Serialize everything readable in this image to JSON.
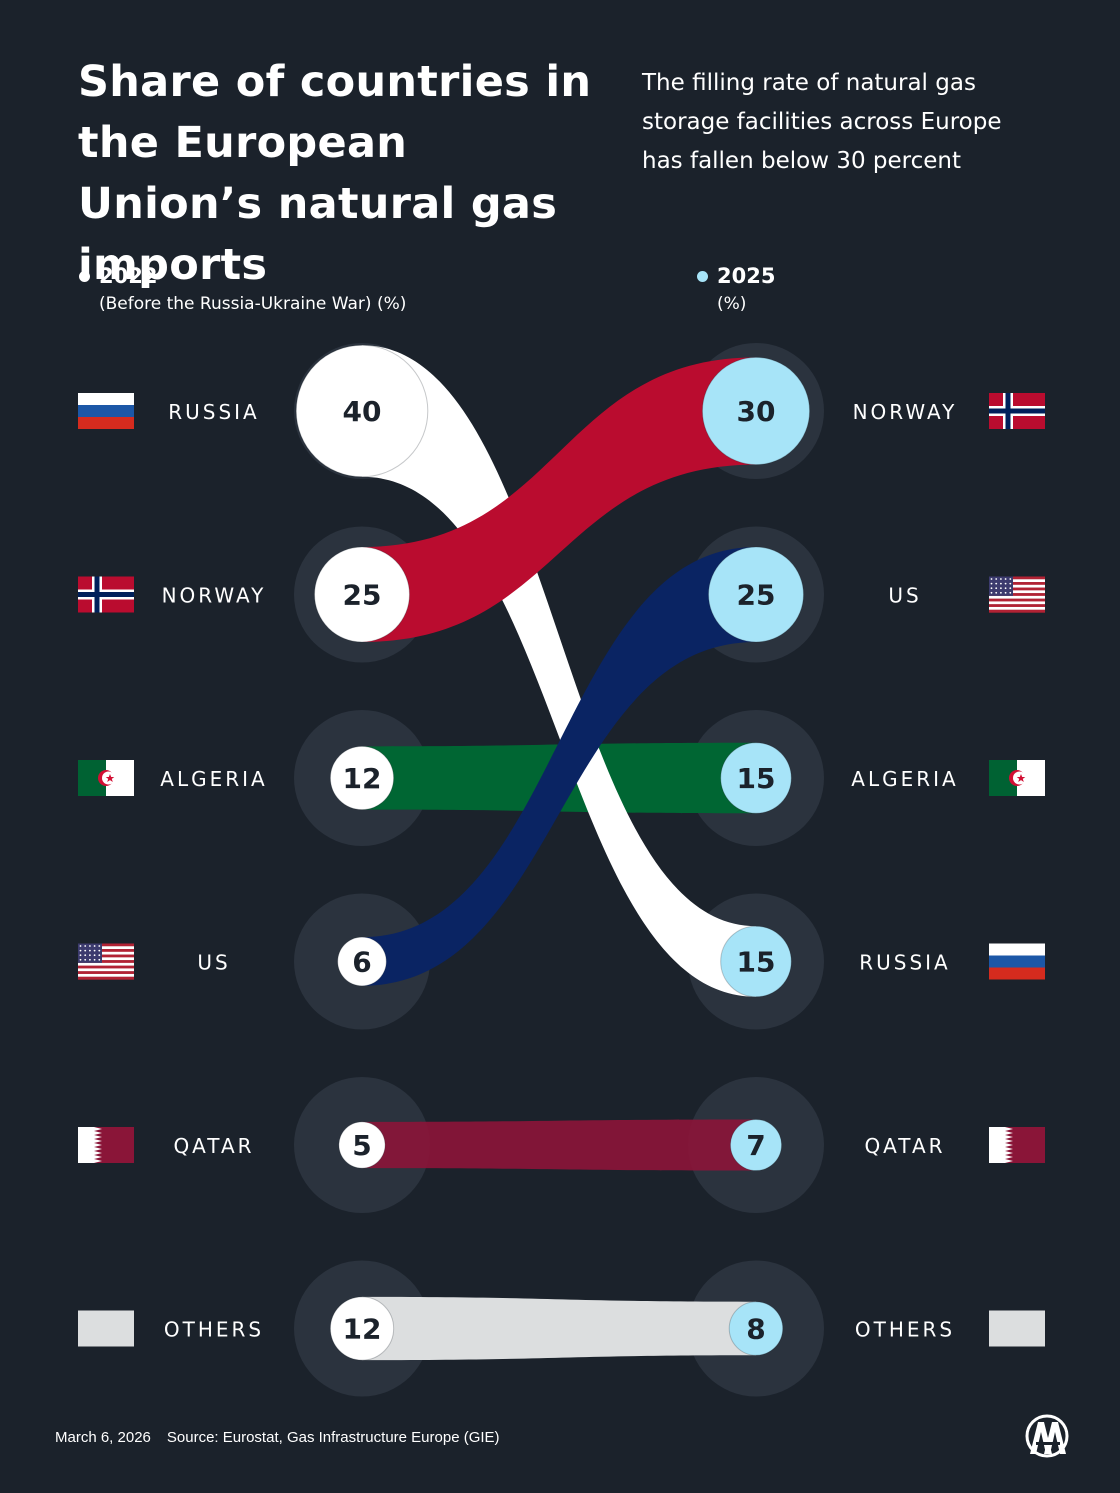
{
  "title": "Share of countries in the European Union’s natural gas imports",
  "subtitle": "The filling rate of natural gas storage facilities across Europe has fallen below 30 percent",
  "legend": {
    "left": {
      "year": "2022",
      "note": "(Before the Russia-Ukraine War) (%)",
      "color": "#ffffff"
    },
    "right": {
      "year": "2025",
      "note": "(%)",
      "color": "#a7e4f8"
    }
  },
  "footer": {
    "date": "March 6, 2026",
    "source": "Source: Eurostat, Gas Infrastructure Europe (GIE)"
  },
  "logo": "aa-logo-icon",
  "chart_data": {
    "type": "slope",
    "x": [
      "2022",
      "2025"
    ],
    "units": "%",
    "left": [
      {
        "country": "RUSSIA",
        "value": 40
      },
      {
        "country": "NORWAY",
        "value": 25
      },
      {
        "country": "ALGERIA",
        "value": 12
      },
      {
        "country": "US",
        "value": 6
      },
      {
        "country": "QATAR",
        "value": 5
      },
      {
        "country": "OTHERS",
        "value": 12
      }
    ],
    "right": [
      {
        "country": "NORWAY",
        "value": 30
      },
      {
        "country": "US",
        "value": 25
      },
      {
        "country": "ALGERIA",
        "value": 15
      },
      {
        "country": "RUSSIA",
        "value": 15
      },
      {
        "country": "QATAR",
        "value": 7
      },
      {
        "country": "OTHERS",
        "value": 8
      }
    ],
    "colors": {
      "RUSSIA": "#ffffff",
      "NORWAY": "#ba0c2f",
      "ALGERIA": "#006633",
      "US": "#0a2463",
      "QATAR": "#8a1538",
      "OTHERS": "#dcdedf"
    },
    "circle_colors": {
      "2022": "#ffffff",
      "2025": "#a7e4f8"
    }
  }
}
